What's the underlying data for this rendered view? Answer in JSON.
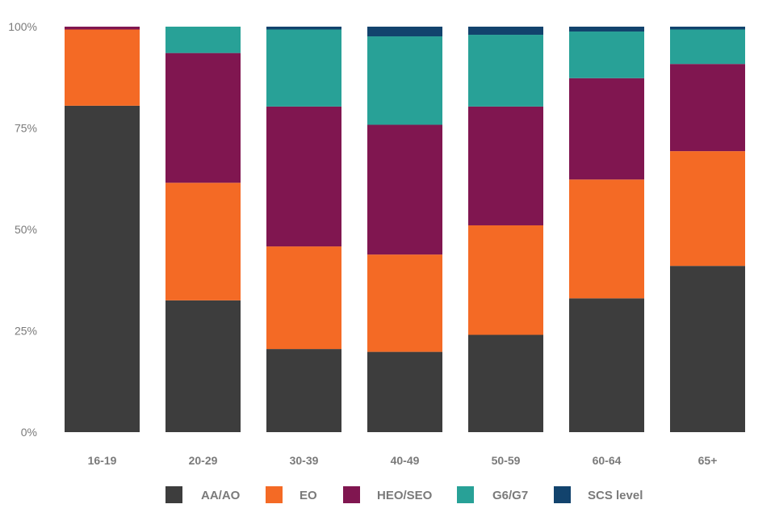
{
  "chart_data": {
    "type": "bar",
    "stacked": true,
    "orientation": "vertical",
    "categories": [
      "16-19",
      "20-29",
      "30-39",
      "40-49",
      "50-59",
      "60-64",
      "65+"
    ],
    "y_ticks": [
      "0%",
      "25%",
      "50%",
      "75%",
      "100%"
    ],
    "ylim": [
      0,
      100
    ],
    "grid": false,
    "legend_position": "bottom",
    "series": [
      {
        "name": "AA/AO",
        "color": "#3d3d3d",
        "values": [
          80.5,
          32.5,
          20.5,
          19.8,
          24.0,
          33.0,
          41.0
        ]
      },
      {
        "name": "EO",
        "color": "#f46a25",
        "values": [
          18.8,
          29.0,
          25.3,
          24.0,
          27.0,
          29.3,
          28.3
        ]
      },
      {
        "name": "HEO/SEO",
        "color": "#801650",
        "values": [
          0.7,
          32.0,
          34.5,
          32.0,
          29.3,
          25.0,
          21.5
        ]
      },
      {
        "name": "G6/G7",
        "color": "#28a197",
        "values": [
          0.0,
          6.5,
          19.0,
          21.8,
          17.7,
          11.5,
          8.5
        ]
      },
      {
        "name": "SCS level",
        "color": "#12436d",
        "values": [
          0.0,
          0.0,
          0.7,
          2.4,
          2.0,
          1.2,
          0.7
        ]
      }
    ]
  },
  "colors": {
    "axis_text": "#7a7a7a"
  }
}
